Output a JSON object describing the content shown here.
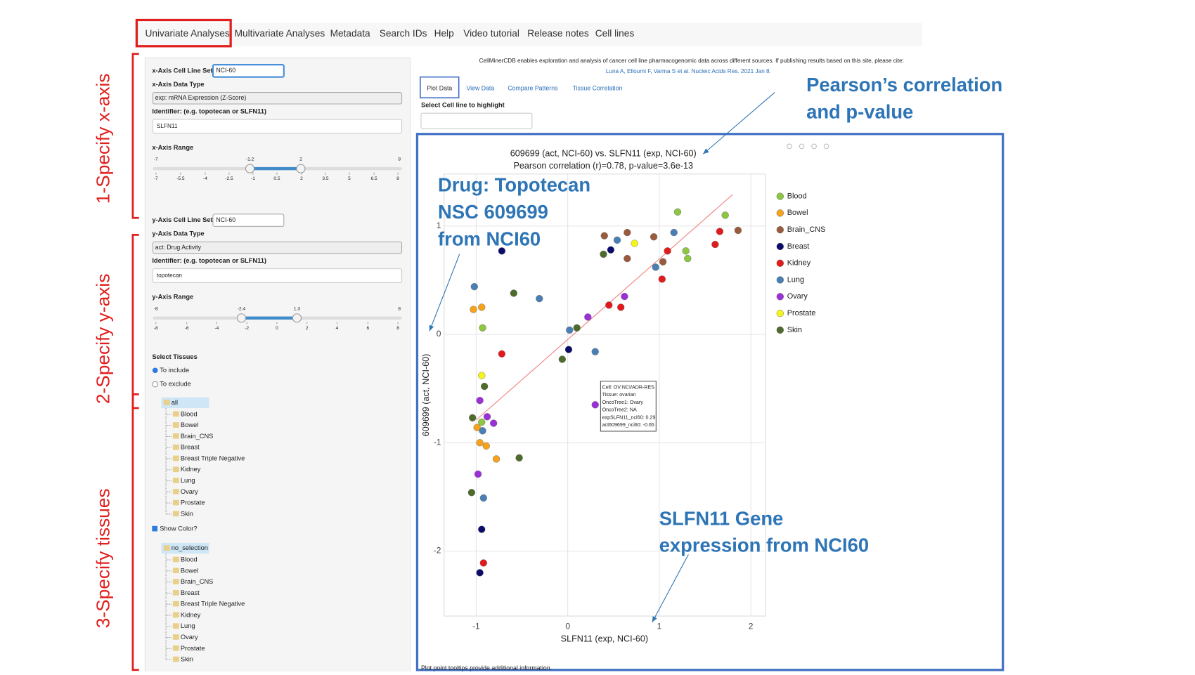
{
  "nav": {
    "tabs": [
      "Univariate Analyses",
      "Multivariate Analyses",
      "Metadata",
      "Search IDs",
      "Help",
      "Video tutorial",
      "Release notes",
      "Cell lines"
    ]
  },
  "citation": {
    "text": "CellMinerCDB enables exploration and analysis of cancer cell line pharmacogenomic data across different sources. If publishing results based on this site, please cite:",
    "link": "Luna A, Elloumi F, Varma S et al. Nucleic Acids Res. 2021 Jan 8."
  },
  "plot_tabs": [
    "Plot Data",
    "View Data",
    "Compare Patterns",
    "Tissue Correlation"
  ],
  "highlight_label": "Select Cell line to highlight",
  "x_controls": {
    "set_label": "x-Axis Cell Line Set",
    "set_value": "NCI-60",
    "type_label": "x-Axis Data Type",
    "type_value": "exp: mRNA Expression (Z-Score)",
    "id_label": "Identifier: (e.g. topotecan or SLFN11)",
    "id_value": "SLFN11",
    "range_label": "x-Axis Range",
    "range_min": "-7",
    "range_low": "-1.2",
    "range_high": "2",
    "range_max": "8",
    "range_ticks": [
      "-7",
      "-5.5",
      "-4",
      "-2.5",
      "-1",
      "0.5",
      "2",
      "3.5",
      "5",
      "6.5",
      "8"
    ]
  },
  "y_controls": {
    "set_label": "y-Axis Cell Line Set",
    "set_value": "NCI-60",
    "type_label": "y-Axis Data Type",
    "type_value": "act: Drug Activity",
    "id_label": "Identifier: (e.g. topotecan or SLFN11)",
    "id_value": "topotecan",
    "range_label": "y-Axis Range",
    "range_min": "-8",
    "range_low": "-2.4",
    "range_high": "1.3",
    "range_max": "8",
    "range_ticks": [
      "-8",
      "-6",
      "-4",
      "-2",
      "0",
      "2",
      "4",
      "6",
      "8"
    ]
  },
  "tissues": {
    "label": "Select Tissues",
    "include": "To include",
    "exclude": "To exclude",
    "tree_root": "all",
    "tree": [
      "Blood",
      "Bowel",
      "Brain_CNS",
      "Breast",
      "Breast Triple Negative",
      "Kidney",
      "Lung",
      "Ovary",
      "Prostate",
      "Skin"
    ],
    "show_color": "Show Color?",
    "color_root": "no_selection",
    "color_tree": [
      "Blood",
      "Bowel",
      "Brain_CNS",
      "Breast",
      "Breast Triple Negative",
      "Kidney",
      "Lung",
      "Ovary",
      "Prostate",
      "Skin"
    ]
  },
  "annotations": {
    "step1": "1-Specify x-axis",
    "step2": "2-Specify y-axis",
    "step3": "3-Specify tissues",
    "pearson": [
      "Pearson’s correlation",
      "and p-value"
    ],
    "drug": [
      "Drug: Topotecan",
      "NSC 609699",
      "from NCI60"
    ],
    "gene": [
      "SLFN11 Gene",
      "expression from NCI60"
    ]
  },
  "footer": "Plot point tooltips provide additional information.",
  "chart_data": {
    "type": "scatter",
    "title": "609699 (act, NCI-60) vs. SLFN11 (exp, NCI-60)",
    "subtitle": "Pearson correlation (r)=0.78, p-value=3.6e-13",
    "xlabel": "SLFN11 (exp, NCI-60)",
    "ylabel": "609699 (act, NCI-60)",
    "xlim": [
      -1.35,
      2.16
    ],
    "ylim": [
      -2.6,
      1.48
    ],
    "xticks": [
      -1,
      0,
      1,
      2
    ],
    "yticks": [
      -2,
      -1,
      0,
      1
    ],
    "grid": true,
    "legend": "right",
    "series": [
      {
        "name": "Blood",
        "color": "#8dc63f",
        "x": [
          1.2,
          1.72,
          1.29,
          1.31,
          -0.93,
          -0.94
        ],
        "values": [
          1.13,
          1.1,
          0.77,
          0.7,
          0.06,
          -0.81
        ]
      },
      {
        "name": "Bowel",
        "color": "#f7a21b",
        "x": [
          -1.03,
          -0.94,
          -0.96,
          -0.89,
          -0.78,
          -0.99
        ],
        "values": [
          0.23,
          0.25,
          -1.0,
          -1.03,
          -1.15,
          -0.86
        ]
      },
      {
        "name": "Brain_CNS",
        "color": "#9b5a3c",
        "x": [
          0.4,
          0.65,
          0.94,
          0.65,
          1.86,
          1.04
        ],
        "values": [
          0.91,
          0.94,
          0.9,
          0.7,
          0.96,
          0.67
        ]
      },
      {
        "name": "Breast",
        "color": "#0b0b6b",
        "x": [
          -0.72,
          0.47,
          0.01,
          -0.94,
          -0.96
        ],
        "values": [
          0.77,
          0.78,
          -0.14,
          -1.8,
          -2.2
        ]
      },
      {
        "name": "Kidney",
        "color": "#e31a1c",
        "x": [
          1.66,
          1.61,
          1.09,
          1.03,
          0.45,
          0.58,
          -0.72,
          -0.92
        ],
        "values": [
          0.95,
          0.83,
          0.77,
          0.51,
          0.27,
          0.25,
          -0.18,
          -2.11
        ]
      },
      {
        "name": "Lung",
        "color": "#4a7fb5",
        "x": [
          1.16,
          0.54,
          0.96,
          -0.31,
          -1.02,
          0.02,
          0.3,
          -0.93,
          -0.92
        ],
        "values": [
          0.94,
          0.87,
          0.62,
          0.33,
          0.44,
          0.04,
          -0.16,
          -0.89,
          -1.51
        ]
      },
      {
        "name": "Ovary",
        "color": "#9b30d9",
        "x": [
          0.62,
          0.22,
          0.3,
          -0.96,
          -0.88,
          -0.81,
          -0.98
        ],
        "values": [
          0.35,
          0.16,
          -0.65,
          -0.61,
          -0.76,
          -0.82,
          -1.29
        ]
      },
      {
        "name": "Prostate",
        "color": "#f5f51a",
        "x": [
          0.73,
          -0.94
        ],
        "values": [
          0.84,
          -0.38
        ]
      },
      {
        "name": "Skin",
        "color": "#4d6b2a",
        "x": [
          0.39,
          -0.59,
          0.1,
          -0.06,
          -0.91,
          -1.04,
          -0.53,
          -1.05
        ],
        "values": [
          0.74,
          0.38,
          0.06,
          -0.23,
          -0.48,
          -0.77,
          -1.14,
          -1.46
        ]
      }
    ],
    "trend_line": {
      "color": "#f08080",
      "x": [
        -1.0,
        1.8
      ],
      "y": [
        -0.79,
        1.29
      ]
    },
    "tooltip": [
      "Cell: OV:NCI/ADR-RES",
      "Tissue: ovarian",
      "OncoTree1: Ovary",
      "OncoTree2: NA",
      "expSLFN11_nci60: 0.29",
      "act609699_nci60: -0.65"
    ]
  }
}
